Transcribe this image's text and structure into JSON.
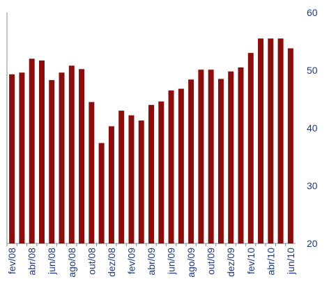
{
  "chart_data": {
    "type": "bar",
    "categories": [
      "fev/08",
      null,
      "abr/08",
      null,
      "jun/08",
      null,
      "ago/08",
      null,
      "out/08",
      null,
      "dez/08",
      null,
      "fev/09",
      null,
      "abr/09",
      null,
      "jun/09",
      null,
      "ago/09",
      null,
      "out/09",
      null,
      "dez/09",
      null,
      "fev/10",
      null,
      "abr/10",
      null,
      "jun/10"
    ],
    "values": [
      49.3,
      49.6,
      52,
      51.7,
      48.3,
      49.6,
      50.8,
      50.2,
      44.5,
      37.4,
      40.3,
      43,
      42.2,
      41.3,
      44,
      44.6,
      46.5,
      46.8,
      48.4,
      50.1,
      50.1,
      48.5,
      49.8,
      50.5,
      53,
      55.5,
      55.5,
      55.5,
      53.8
    ],
    "color": "#8b0e0e",
    "ylim": [
      20,
      60
    ],
    "yticks": [
      20,
      30,
      40,
      50,
      60
    ]
  }
}
